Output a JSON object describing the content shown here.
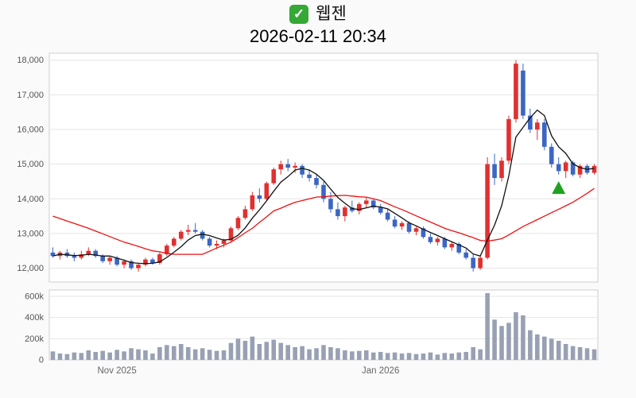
{
  "header": {
    "icon": "check-mark-icon",
    "icon_glyph": "✓",
    "icon_color": "#35a835",
    "title": "웹젠",
    "timestamp": "2026-02-11 20:34"
  },
  "chart_data": {
    "type": "candlestick",
    "title": "웹젠",
    "as_of": "2026-02-11 20:34",
    "legend_position": "none",
    "grid": true,
    "price_axis": {
      "min": 11600,
      "max": 18200,
      "ticks": [
        {
          "value": 12000,
          "label": "12,000"
        },
        {
          "value": 13000,
          "label": "13,000"
        },
        {
          "value": 14000,
          "label": "14,000"
        },
        {
          "value": 15000,
          "label": "15,000"
        },
        {
          "value": 16000,
          "label": "16,000"
        },
        {
          "value": 17000,
          "label": "17,000"
        },
        {
          "value": 18000,
          "label": "18,000"
        }
      ]
    },
    "volume_axis": {
      "max": 660000,
      "ticks": [
        {
          "value": 0,
          "label": "0"
        },
        {
          "value": 200000,
          "label": "200k"
        },
        {
          "value": 400000,
          "label": "400k"
        },
        {
          "value": 600000,
          "label": "600k"
        }
      ]
    },
    "x_axis_labels": [
      {
        "index": 9,
        "label": "Nov 2025"
      },
      {
        "index": 46,
        "label": "Jan 2026"
      }
    ],
    "columns": [
      "open",
      "high",
      "low",
      "close",
      "volume"
    ],
    "ohlcv": [
      [
        12450,
        12600,
        12300,
        12350,
        80000
      ],
      [
        12350,
        12500,
        12250,
        12450,
        60000
      ],
      [
        12450,
        12550,
        12300,
        12350,
        55000
      ],
      [
        12350,
        12450,
        12200,
        12300,
        70000
      ],
      [
        12300,
        12500,
        12250,
        12400,
        65000
      ],
      [
        12400,
        12600,
        12350,
        12500,
        90000
      ],
      [
        12500,
        12550,
        12300,
        12350,
        75000
      ],
      [
        12350,
        12400,
        12150,
        12200,
        85000
      ],
      [
        12200,
        12350,
        12100,
        12300,
        70000
      ],
      [
        12300,
        12350,
        12050,
        12100,
        95000
      ],
      [
        12100,
        12250,
        12000,
        12200,
        80000
      ],
      [
        12200,
        12250,
        11950,
        12000,
        110000
      ],
      [
        12000,
        12150,
        11900,
        12100,
        100000
      ],
      [
        12100,
        12300,
        12050,
        12250,
        90000
      ],
      [
        12250,
        12300,
        12100,
        12150,
        60000
      ],
      [
        12150,
        12450,
        12100,
        12400,
        120000
      ],
      [
        12400,
        12700,
        12350,
        12650,
        140000
      ],
      [
        12650,
        12900,
        12600,
        12850,
        130000
      ],
      [
        12850,
        13100,
        12800,
        13050,
        150000
      ],
      [
        13050,
        13250,
        12950,
        13100,
        120000
      ],
      [
        13100,
        13300,
        13000,
        13050,
        100000
      ],
      [
        13050,
        13100,
        12800,
        12850,
        110000
      ],
      [
        12850,
        12900,
        12600,
        12650,
        95000
      ],
      [
        12650,
        12800,
        12550,
        12700,
        85000
      ],
      [
        12700,
        12850,
        12600,
        12800,
        90000
      ],
      [
        12800,
        13200,
        12750,
        13150,
        160000
      ],
      [
        13150,
        13500,
        13100,
        13450,
        200000
      ],
      [
        13450,
        13800,
        13400,
        13700,
        180000
      ],
      [
        13700,
        14200,
        13650,
        14100,
        220000
      ],
      [
        14100,
        14300,
        13900,
        14000,
        150000
      ],
      [
        14000,
        14500,
        13950,
        14450,
        170000
      ],
      [
        14450,
        14900,
        14400,
        14850,
        190000
      ],
      [
        14850,
        15100,
        14700,
        15000,
        160000
      ],
      [
        15000,
        15150,
        14800,
        14900,
        140000
      ],
      [
        14900,
        15050,
        14750,
        14950,
        120000
      ],
      [
        14950,
        15000,
        14600,
        14700,
        130000
      ],
      [
        14700,
        14850,
        14500,
        14600,
        100000
      ],
      [
        14600,
        14700,
        14300,
        14400,
        110000
      ],
      [
        14400,
        14500,
        13900,
        14000,
        140000
      ],
      [
        14000,
        14200,
        13600,
        13700,
        120000
      ],
      [
        13700,
        13900,
        13400,
        13500,
        110000
      ],
      [
        13500,
        13800,
        13350,
        13750,
        90000
      ],
      [
        13750,
        13950,
        13600,
        13650,
        80000
      ],
      [
        13650,
        13900,
        13550,
        13850,
        85000
      ],
      [
        13850,
        14050,
        13750,
        13950,
        90000
      ],
      [
        13950,
        14000,
        13700,
        13750,
        70000
      ],
      [
        13750,
        13850,
        13550,
        13600,
        75000
      ],
      [
        13600,
        13700,
        13350,
        13400,
        65000
      ],
      [
        13400,
        13500,
        13150,
        13200,
        70000
      ],
      [
        13200,
        13350,
        13100,
        13300,
        60000
      ],
      [
        13300,
        13350,
        13000,
        13050,
        65000
      ],
      [
        13050,
        13200,
        12950,
        13150,
        55000
      ],
      [
        13150,
        13200,
        12850,
        12900,
        60000
      ],
      [
        12900,
        13000,
        12700,
        12750,
        70000
      ],
      [
        12750,
        12900,
        12650,
        12850,
        50000
      ],
      [
        12850,
        12900,
        12550,
        12600,
        65000
      ],
      [
        12600,
        12750,
        12500,
        12700,
        60000
      ],
      [
        12700,
        12750,
        12400,
        12450,
        70000
      ],
      [
        12450,
        12550,
        12250,
        12300,
        75000
      ],
      [
        12300,
        12400,
        11900,
        12000,
        120000
      ],
      [
        12000,
        12350,
        11950,
        12300,
        100000
      ],
      [
        12300,
        15200,
        12250,
        15000,
        630000
      ],
      [
        15000,
        15300,
        14400,
        14600,
        380000
      ],
      [
        14600,
        15200,
        14500,
        15100,
        320000
      ],
      [
        15100,
        16400,
        15000,
        16300,
        350000
      ],
      [
        16300,
        18000,
        16200,
        17900,
        450000
      ],
      [
        17700,
        17900,
        16300,
        16400,
        420000
      ],
      [
        16400,
        16600,
        15900,
        16000,
        280000
      ],
      [
        16000,
        16300,
        15700,
        16200,
        240000
      ],
      [
        16200,
        16300,
        15400,
        15500,
        220000
      ],
      [
        15500,
        15600,
        14900,
        15000,
        200000
      ],
      [
        15000,
        15200,
        14700,
        14800,
        180000
      ],
      [
        14800,
        15100,
        14600,
        15050,
        150000
      ],
      [
        15050,
        15100,
        14650,
        14700,
        130000
      ],
      [
        14700,
        15000,
        14600,
        14950,
        120000
      ],
      [
        14950,
        15000,
        14700,
        14750,
        110000
      ],
      [
        14750,
        15000,
        14700,
        14950,
        100000
      ]
    ],
    "ma_short": {
      "name": "short-moving-average",
      "period": 5,
      "color": "#111111"
    },
    "ma_long": {
      "name": "long-moving-average",
      "period": 20,
      "color": "#ee1111",
      "values": [
        13500,
        13430,
        13360,
        13290,
        13220,
        13150,
        13070,
        12990,
        12910,
        12830,
        12750,
        12690,
        12630,
        12560,
        12500,
        12470,
        12430,
        12400,
        12400,
        12400,
        12400,
        12400,
        12490,
        12580,
        12660,
        12750,
        12880,
        13020,
        13150,
        13320,
        13480,
        13650,
        13730,
        13820,
        13900,
        13950,
        14000,
        14050,
        14060,
        14080,
        14090,
        14100,
        14080,
        14060,
        14050,
        14000,
        13950,
        13860,
        13770,
        13690,
        13600,
        13510,
        13420,
        13330,
        13240,
        13150,
        13080,
        13020,
        12950,
        12880,
        12800,
        12780,
        12810,
        12850,
        12960,
        13080,
        13200,
        13300,
        13400,
        13500,
        13600,
        13700,
        13800,
        13900,
        14030,
        14160,
        14300
      ]
    },
    "marker": {
      "shape": "triangle-up",
      "name": "buy-signal",
      "color": "#1fa31f",
      "index": 71,
      "price": 14300
    },
    "colors": {
      "up": "#e03030",
      "down": "#3b66c4",
      "volume": "#98a1b3",
      "grid": "#e6e6e6",
      "border": "#cfcfcf",
      "axis_text": "#555555",
      "x_label_text": "#666666",
      "plot_bg": "#ffffff"
    }
  }
}
